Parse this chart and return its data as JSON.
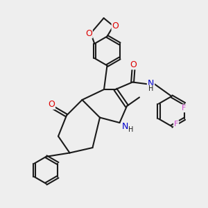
{
  "bg_color": "#eeeeee",
  "bond_color": "#1a1a1a",
  "bond_width": 1.5,
  "O_color": "#dd0000",
  "N_color": "#0000cc",
  "F_color": "#cc44cc",
  "font_size": 8,
  "figsize": [
    3.0,
    3.0
  ],
  "dpi": 100,
  "xlim": [
    0,
    10
  ],
  "ylim": [
    0,
    10
  ]
}
